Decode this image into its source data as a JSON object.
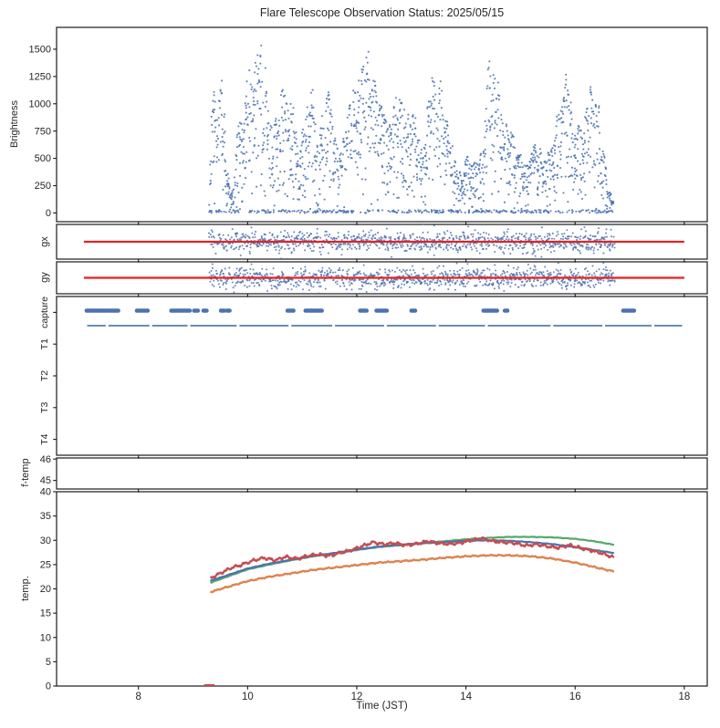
{
  "window": {
    "background": "#ffffff"
  },
  "chart_data": {
    "type": "multi-panel-time-series",
    "title": "Flare Telescope Observation Status: 2025/05/15",
    "xlabel": "Time (JST)",
    "xlim": [
      6.5,
      18.42
    ],
    "xticks": [
      8,
      10,
      12,
      14,
      16,
      18
    ],
    "grid": false,
    "legend": "none",
    "render_seed": 20250515,
    "palette": {
      "scatter_blue": "#4C72B0",
      "reference_red": "#E32222",
      "temp_green": "#55A868",
      "temp_blue": "#4C72B0",
      "temp_orange": "#DD8452",
      "temp_red": "#C44E52",
      "spine": "#1a1a1a",
      "text": "#262626"
    },
    "panels": [
      {
        "id": "brightness",
        "type": "scatter",
        "ylabel": "Brightness",
        "ylim": [
          -80,
          1700
        ],
        "yticks": [
          0,
          250,
          500,
          750,
          1000,
          1250,
          1500
        ],
        "time_range": [
          9.3,
          16.7
        ],
        "points_per_hour": 260,
        "baseline_fraction": 0.16,
        "spike_freq": 26,
        "envelope": [
          [
            9.3,
            200
          ],
          [
            9.36,
            1400
          ],
          [
            9.44,
            900
          ],
          [
            9.52,
            1600
          ],
          [
            9.6,
            500
          ],
          [
            9.7,
            150
          ],
          [
            9.8,
            700
          ],
          [
            9.9,
            1100
          ],
          [
            10.0,
            1300
          ],
          [
            10.1,
            1450
          ],
          [
            10.22,
            1600
          ],
          [
            10.32,
            1500
          ],
          [
            10.45,
            700
          ],
          [
            10.55,
            1000
          ],
          [
            10.68,
            1300
          ],
          [
            10.8,
            1200
          ],
          [
            10.92,
            500
          ],
          [
            11.05,
            900
          ],
          [
            11.18,
            1200
          ],
          [
            11.3,
            700
          ],
          [
            11.42,
            1150
          ],
          [
            11.55,
            1100
          ],
          [
            11.68,
            500
          ],
          [
            11.8,
            900
          ],
          [
            11.92,
            1100
          ],
          [
            12.05,
            1300
          ],
          [
            12.16,
            1600
          ],
          [
            12.3,
            1250
          ],
          [
            12.42,
            1300
          ],
          [
            12.55,
            800
          ],
          [
            12.68,
            1150
          ],
          [
            12.8,
            1100
          ],
          [
            12.92,
            900
          ],
          [
            13.05,
            1000
          ],
          [
            13.18,
            600
          ],
          [
            13.3,
            1100
          ],
          [
            13.42,
            1450
          ],
          [
            13.55,
            1200
          ],
          [
            13.68,
            800
          ],
          [
            13.8,
            500
          ],
          [
            13.92,
            350
          ],
          [
            14.05,
            600
          ],
          [
            14.18,
            450
          ],
          [
            14.3,
            700
          ],
          [
            14.42,
            1500
          ],
          [
            14.55,
            1350
          ],
          [
            14.68,
            900
          ],
          [
            14.8,
            800
          ],
          [
            14.92,
            700
          ],
          [
            15.05,
            450
          ],
          [
            15.18,
            600
          ],
          [
            15.3,
            700
          ],
          [
            15.42,
            500
          ],
          [
            15.55,
            600
          ],
          [
            15.68,
            950
          ],
          [
            15.8,
            1350
          ],
          [
            15.92,
            1150
          ],
          [
            16.05,
            800
          ],
          [
            16.18,
            950
          ],
          [
            16.3,
            1200
          ],
          [
            16.42,
            1100
          ],
          [
            16.52,
            600
          ],
          [
            16.62,
            250
          ],
          [
            16.7,
            80
          ]
        ]
      },
      {
        "id": "gx",
        "type": "scatter-band",
        "ylabel": "gx",
        "time_range": [
          9.3,
          16.72
        ],
        "points_per_hour": 150,
        "reference_line": {
          "start": 7.0,
          "end": 18.0
        }
      },
      {
        "id": "gy",
        "type": "scatter-band",
        "ylabel": "gy",
        "time_range": [
          9.3,
          16.72
        ],
        "points_per_hour": 150,
        "reference_line": {
          "start": 7.0,
          "end": 18.0
        }
      },
      {
        "id": "capture",
        "type": "event-rows",
        "row_labels": [
          "capture",
          "T1",
          "T2",
          "T3",
          "T4"
        ],
        "capture_segments": [
          [
            7.05,
            7.43
          ],
          [
            7.46,
            7.63
          ],
          [
            7.97,
            8.17
          ],
          [
            8.6,
            8.94
          ],
          [
            9.02,
            9.09
          ],
          [
            9.19,
            9.25
          ],
          [
            9.51,
            9.57
          ],
          [
            9.62,
            9.67
          ],
          [
            10.73,
            10.84
          ],
          [
            11.06,
            11.36
          ],
          [
            12.06,
            12.18
          ],
          [
            12.36,
            12.55
          ],
          [
            13.0,
            13.07
          ],
          [
            14.32,
            14.57
          ],
          [
            14.71,
            14.76
          ],
          [
            16.88,
            17.08
          ]
        ],
        "t1_segments": [
          [
            7.06,
            7.4
          ],
          [
            7.45,
            8.2
          ],
          [
            8.25,
            8.9
          ],
          [
            8.95,
            9.8
          ],
          [
            9.85,
            10.75
          ],
          [
            10.8,
            11.55
          ],
          [
            11.6,
            12.5
          ],
          [
            12.55,
            13.45
          ],
          [
            13.5,
            14.35
          ],
          [
            14.4,
            15.55
          ],
          [
            15.6,
            16.5
          ],
          [
            16.55,
            17.4
          ],
          [
            17.45,
            17.96
          ]
        ]
      },
      {
        "id": "f-temp",
        "type": "line",
        "ylabel": "f-temp",
        "ylim": [
          44.6,
          46.05
        ],
        "yticks": [
          45,
          46
        ],
        "series": []
      },
      {
        "id": "temp",
        "type": "line",
        "ylabel": "temp.",
        "ylim": [
          0,
          40
        ],
        "yticks": [
          0,
          5,
          10,
          15,
          20,
          25,
          30,
          35,
          40
        ],
        "series": [
          {
            "name": "temp-green",
            "color": "#55A868",
            "width": 2.2,
            "noise": 0.05,
            "points": [
              [
                9.33,
                21.3
              ],
              [
                9.6,
                22.4
              ],
              [
                10.0,
                24.0
              ],
              [
                10.4,
                25.0
              ],
              [
                10.8,
                25.9
              ],
              [
                11.2,
                26.7
              ],
              [
                11.6,
                27.3
              ],
              [
                12.0,
                28.0
              ],
              [
                12.4,
                28.6
              ],
              [
                12.8,
                29.0
              ],
              [
                13.2,
                29.4
              ],
              [
                13.6,
                29.8
              ],
              [
                14.0,
                30.2
              ],
              [
                14.4,
                30.5
              ],
              [
                14.8,
                30.7
              ],
              [
                15.2,
                30.7
              ],
              [
                15.6,
                30.6
              ],
              [
                16.0,
                30.3
              ],
              [
                16.35,
                29.8
              ],
              [
                16.7,
                29.1
              ]
            ]
          },
          {
            "name": "temp-blue",
            "color": "#4C72B0",
            "width": 2.2,
            "noise": 0.05,
            "points": [
              [
                9.33,
                21.7
              ],
              [
                9.6,
                22.7
              ],
              [
                10.0,
                24.2
              ],
              [
                10.4,
                25.2
              ],
              [
                10.8,
                26.0
              ],
              [
                11.2,
                26.8
              ],
              [
                11.6,
                27.4
              ],
              [
                12.0,
                28.1
              ],
              [
                12.4,
                28.7
              ],
              [
                12.8,
                29.1
              ],
              [
                13.2,
                29.4
              ],
              [
                13.6,
                29.6
              ],
              [
                14.0,
                29.9
              ],
              [
                14.4,
                30.0
              ],
              [
                14.8,
                29.9
              ],
              [
                15.2,
                29.6
              ],
              [
                15.6,
                29.2
              ],
              [
                16.0,
                28.6
              ],
              [
                16.35,
                28.0
              ],
              [
                16.7,
                27.4
              ]
            ]
          },
          {
            "name": "temp-orange",
            "color": "#DD8452",
            "width": 2.4,
            "noise": 0.12,
            "points": [
              [
                9.33,
                19.4
              ],
              [
                9.6,
                20.3
              ],
              [
                10.0,
                21.6
              ],
              [
                10.4,
                22.5
              ],
              [
                10.8,
                23.2
              ],
              [
                11.2,
                23.9
              ],
              [
                11.6,
                24.4
              ],
              [
                12.0,
                24.9
              ],
              [
                12.4,
                25.4
              ],
              [
                12.8,
                25.7
              ],
              [
                13.2,
                26.0
              ],
              [
                13.6,
                26.4
              ],
              [
                14.0,
                26.7
              ],
              [
                14.4,
                26.9
              ],
              [
                14.8,
                26.9
              ],
              [
                15.2,
                26.7
              ],
              [
                15.6,
                26.2
              ],
              [
                16.0,
                25.4
              ],
              [
                16.35,
                24.5
              ],
              [
                16.7,
                23.6
              ]
            ]
          },
          {
            "name": "temp-red",
            "color": "#C44E52",
            "width": 2.4,
            "noise": 0.3,
            "zero_segment": [
              9.22,
              9.38
            ],
            "points": [
              [
                9.33,
                22.3
              ],
              [
                9.5,
                23.2
              ],
              [
                9.7,
                24.3
              ],
              [
                9.9,
                25.0
              ],
              [
                10.1,
                25.8
              ],
              [
                10.3,
                26.4
              ],
              [
                10.5,
                25.9
              ],
              [
                10.7,
                26.6
              ],
              [
                10.9,
                26.2
              ],
              [
                11.1,
                26.8
              ],
              [
                11.3,
                27.1
              ],
              [
                11.5,
                26.8
              ],
              [
                11.7,
                27.4
              ],
              [
                11.9,
                28.0
              ],
              [
                12.1,
                28.8
              ],
              [
                12.3,
                29.6
              ],
              [
                12.5,
                29.2
              ],
              [
                12.7,
                29.4
              ],
              [
                12.9,
                29.0
              ],
              [
                13.1,
                29.3
              ],
              [
                13.3,
                29.8
              ],
              [
                13.5,
                29.4
              ],
              [
                13.7,
                29.2
              ],
              [
                13.9,
                29.5
              ],
              [
                14.1,
                30.0
              ],
              [
                14.3,
                30.4
              ],
              [
                14.5,
                29.8
              ],
              [
                14.7,
                29.6
              ],
              [
                14.9,
                29.4
              ],
              [
                15.1,
                28.9
              ],
              [
                15.3,
                29.2
              ],
              [
                15.5,
                28.7
              ],
              [
                15.7,
                28.5
              ],
              [
                15.9,
                29.0
              ],
              [
                16.1,
                28.4
              ],
              [
                16.3,
                27.9
              ],
              [
                16.5,
                27.3
              ],
              [
                16.7,
                26.5
              ]
            ]
          }
        ]
      }
    ]
  }
}
